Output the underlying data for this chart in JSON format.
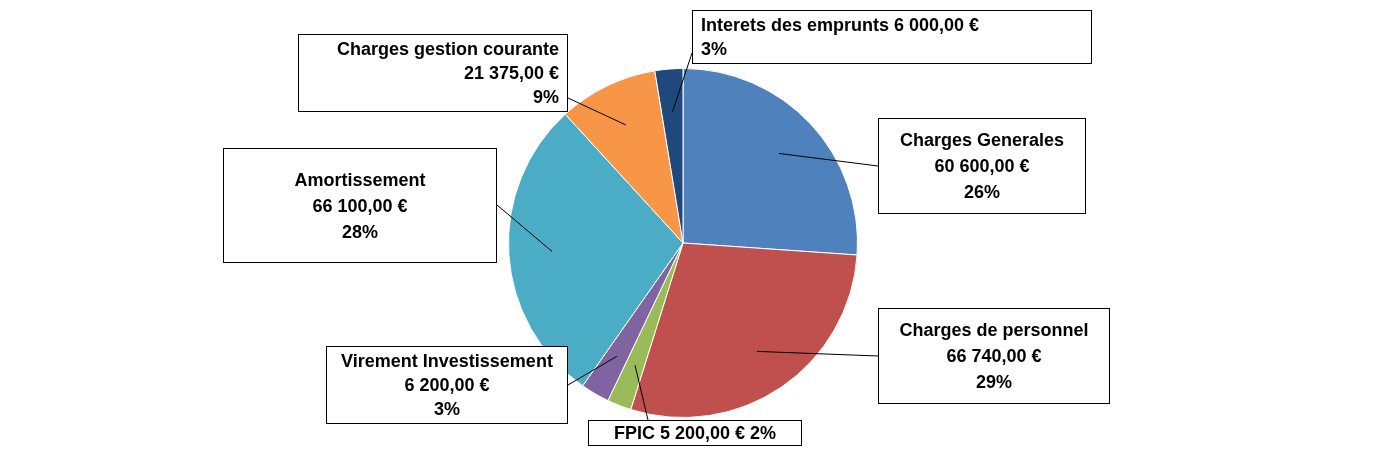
{
  "chart_data": {
    "type": "pie",
    "categories": [
      "Charges Generales",
      "Charges de personnel",
      "FPIC",
      "Virement Investissement",
      "Amortissement",
      "Charges gestion courante",
      "Interets des emprunts"
    ],
    "values": [
      60600,
      66740,
      5200,
      6200,
      66100,
      21375,
      6000
    ],
    "colors": [
      "#4f81bd",
      "#c0504d",
      "#9bbb59",
      "#8064a2",
      "#4bacc6",
      "#f79646",
      "#1f497d"
    ],
    "value_labels": [
      "60 600,00 €\n26%",
      "66 740,00 €\n29%",
      "5 200,00 €\n2%",
      "6 200,00 €\n3%",
      "66 100,00 €\n28%",
      "21 375,00 €\n9%",
      "6 000,00 €\n3%"
    ],
    "legend": false
  }
}
